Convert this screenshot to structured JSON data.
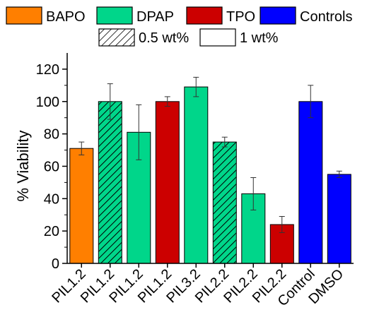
{
  "chart_data": {
    "type": "bar",
    "title": "",
    "xlabel": "",
    "ylabel": "% Viability",
    "ylim": [
      0,
      130
    ],
    "yticks": [
      0,
      20,
      40,
      60,
      80,
      100,
      120
    ],
    "grid": false,
    "legend_position": "top",
    "legend": {
      "colors": [
        {
          "label": "BAPO",
          "color": "#ff7f00"
        },
        {
          "label": "DPAP",
          "color": "#00d68a"
        },
        {
          "label": "TPO",
          "color": "#cc0000"
        },
        {
          "label": "Controls",
          "color": "#0000ff"
        }
      ],
      "patterns": [
        {
          "label": "0.5 wt%",
          "pattern": "hatched"
        },
        {
          "label": "1 wt%",
          "pattern": "solid"
        }
      ]
    },
    "categories": [
      "PIL1.2",
      "PIL1.2",
      "PIL1.2",
      "PIL1.2",
      "PIL3.2",
      "PIL2.2",
      "PIL2.2",
      "PIL2.2",
      "Control",
      "DMSO"
    ],
    "values": [
      71,
      100,
      81,
      100,
      109,
      75,
      43,
      24,
      100,
      55
    ],
    "errors": [
      4,
      11,
      17,
      3,
      6,
      3,
      10,
      5,
      10,
      2
    ],
    "bar_groups": [
      "BAPO",
      "DPAP",
      "DPAP",
      "TPO",
      "DPAP",
      "DPAP",
      "DPAP",
      "TPO",
      "Controls",
      "Controls"
    ],
    "bar_colors": [
      "#ff7f00",
      "#00d68a",
      "#00d68a",
      "#cc0000",
      "#00d68a",
      "#00d68a",
      "#00d68a",
      "#cc0000",
      "#0000ff",
      "#0000ff"
    ],
    "hatched": [
      false,
      true,
      false,
      false,
      false,
      true,
      false,
      false,
      false,
      false
    ]
  }
}
